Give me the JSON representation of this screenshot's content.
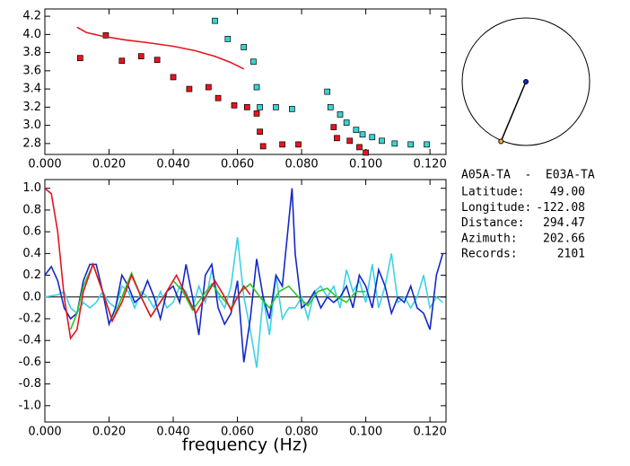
{
  "chart_data": [
    {
      "type": "scatter",
      "xlim": [
        0,
        0.125
      ],
      "ylim": [
        2.68,
        4.28
      ],
      "xticks": [
        {
          "value": 0,
          "label": "0.000"
        },
        {
          "value": 0.02,
          "label": "0.020"
        },
        {
          "value": 0.04,
          "label": "0.040"
        },
        {
          "value": 0.06,
          "label": "0.060"
        },
        {
          "value": 0.08,
          "label": "0.080"
        },
        {
          "value": 0.1,
          "label": "0.100"
        },
        {
          "value": 0.12,
          "label": "0.120"
        }
      ],
      "yticks": [
        {
          "value": 2.8,
          "label": "2.8"
        },
        {
          "value": 3.0,
          "label": "3.0"
        },
        {
          "value": 3.2,
          "label": "3.2"
        },
        {
          "value": 3.4,
          "label": "3.4"
        },
        {
          "value": 3.6,
          "label": "3.6"
        },
        {
          "value": 3.8,
          "label": "3.8"
        },
        {
          "value": 4.0,
          "label": "4.0"
        },
        {
          "value": 4.2,
          "label": "4.2"
        }
      ],
      "series": [
        {
          "type": "scatter",
          "color": "#e8141e",
          "x": [
            0.011,
            0.019,
            0.024,
            0.03,
            0.035,
            0.04,
            0.045,
            0.051,
            0.054,
            0.059,
            0.063,
            0.066,
            0.067,
            0.068,
            0.074,
            0.079,
            0.09,
            0.091,
            0.095,
            0.098,
            0.1
          ],
          "values": [
            3.74,
            3.99,
            3.71,
            3.76,
            3.72,
            3.53,
            3.4,
            3.42,
            3.3,
            3.22,
            3.2,
            3.13,
            2.93,
            2.77,
            2.79,
            2.79,
            2.98,
            2.86,
            2.83,
            2.76,
            2.7
          ]
        },
        {
          "type": "scatter",
          "color": "#3cd2d2",
          "x": [
            0.053,
            0.057,
            0.062,
            0.065,
            0.066,
            0.067,
            0.072,
            0.077,
            0.088,
            0.089,
            0.092,
            0.094,
            0.097,
            0.099,
            0.102,
            0.105,
            0.109,
            0.114,
            0.119
          ],
          "values": [
            4.15,
            3.95,
            3.86,
            3.7,
            3.42,
            3.2,
            3.2,
            3.18,
            3.37,
            3.2,
            3.12,
            3.03,
            2.95,
            2.9,
            2.87,
            2.83,
            2.8,
            2.79,
            2.79
          ]
        },
        {
          "type": "line",
          "color": "#e8141e",
          "x": [
            0.01,
            0.013,
            0.018,
            0.025,
            0.032,
            0.04,
            0.047,
            0.053,
            0.058,
            0.062
          ],
          "values": [
            4.08,
            4.02,
            3.98,
            3.94,
            3.91,
            3.87,
            3.82,
            3.76,
            3.69,
            3.62
          ]
        }
      ]
    },
    {
      "type": "line",
      "x_label": "frequency (Hz)",
      "xlim": [
        0,
        0.125
      ],
      "ylim": [
        -1.15,
        1.08
      ],
      "xticks": [
        {
          "value": 0,
          "label": "0.000"
        },
        {
          "value": 0.02,
          "label": "0.020"
        },
        {
          "value": 0.04,
          "label": "0.040"
        },
        {
          "value": 0.06,
          "label": "0.060"
        },
        {
          "value": 0.08,
          "label": "0.080"
        },
        {
          "value": 0.1,
          "label": "0.100"
        },
        {
          "value": 0.12,
          "label": "0.120"
        }
      ],
      "yticks": [
        {
          "value": -1.0,
          "label": "-1.0"
        },
        {
          "value": -0.8,
          "label": "-0.8"
        },
        {
          "value": -0.6,
          "label": "-0.6"
        },
        {
          "value": -0.4,
          "label": "-0.4"
        },
        {
          "value": -0.2,
          "label": "-0.2"
        },
        {
          "value": 0,
          "label": "0.0"
        },
        {
          "value": 0.2,
          "label": "0.2"
        },
        {
          "value": 0.4,
          "label": "0.4"
        },
        {
          "value": 0.6,
          "label": "0.6"
        },
        {
          "value": 0.8,
          "label": "0.8"
        },
        {
          "value": 1.0,
          "label": "1.0"
        }
      ],
      "series": [
        {
          "type": "line",
          "color": "#3cd2e6",
          "x": [
            0,
            0.004,
            0.006,
            0.008,
            0.01,
            0.012,
            0.014,
            0.016,
            0.018,
            0.02,
            0.022,
            0.024,
            0.026,
            0.028,
            0.03,
            0.032,
            0.034,
            0.036,
            0.038,
            0.04,
            0.042,
            0.044,
            0.046,
            0.048,
            0.05,
            0.052,
            0.054,
            0.056,
            0.058,
            0.06,
            0.062,
            0.064,
            0.066,
            0.068,
            0.07,
            0.072,
            0.074,
            0.076,
            0.078,
            0.08,
            0.082,
            0.084,
            0.086,
            0.088,
            0.09,
            0.092,
            0.094,
            0.096,
            0.098,
            0.1,
            0.102,
            0.104,
            0.106,
            0.108,
            0.11,
            0.112,
            0.114,
            0.116,
            0.118,
            0.12,
            0.122,
            0.124
          ],
          "values": [
            0.0,
            0.02,
            0.05,
            -0.1,
            -0.15,
            -0.05,
            -0.1,
            -0.05,
            0.05,
            -0.05,
            -0.1,
            0.1,
            0.05,
            -0.1,
            0.05,
            0.0,
            -0.1,
            0.05,
            -0.1,
            -0.05,
            0.1,
            0.05,
            -0.1,
            0.1,
            -0.05,
            0.25,
            0.0,
            -0.1,
            0.1,
            0.55,
            0.0,
            -0.3,
            -0.65,
            0.0,
            -0.35,
            0.2,
            -0.2,
            -0.1,
            -0.1,
            0.0,
            -0.2,
            0.05,
            0.1,
            0.0,
            0.1,
            -0.1,
            0.25,
            0.05,
            0.15,
            -0.05,
            0.3,
            -0.1,
            0.1,
            0.4,
            -0.05,
            0.0,
            -0.1,
            0.0,
            0.2,
            -0.1,
            0.0,
            -0.05
          ]
        },
        {
          "type": "line",
          "color": "#1428c8",
          "x": [
            0,
            0.002,
            0.004,
            0.006,
            0.008,
            0.01,
            0.012,
            0.014,
            0.016,
            0.018,
            0.02,
            0.022,
            0.024,
            0.026,
            0.028,
            0.03,
            0.032,
            0.034,
            0.036,
            0.038,
            0.04,
            0.042,
            0.044,
            0.046,
            0.048,
            0.05,
            0.052,
            0.054,
            0.056,
            0.058,
            0.06,
            0.062,
            0.064,
            0.066,
            0.068,
            0.07,
            0.072,
            0.074,
            0.076,
            0.077,
            0.078,
            0.08,
            0.082,
            0.084,
            0.086,
            0.088,
            0.09,
            0.092,
            0.094,
            0.096,
            0.098,
            0.1,
            0.102,
            0.104,
            0.106,
            0.108,
            0.11,
            0.112,
            0.114,
            0.116,
            0.118,
            0.12,
            0.122,
            0.124
          ],
          "values": [
            0.2,
            0.28,
            0.15,
            -0.1,
            -0.2,
            -0.15,
            0.15,
            0.3,
            0.3,
            0.05,
            -0.25,
            -0.1,
            0.2,
            0.1,
            -0.05,
            0.0,
            0.15,
            0.0,
            -0.2,
            0.05,
            0.1,
            -0.05,
            0.3,
            0.0,
            -0.35,
            0.2,
            0.3,
            -0.1,
            -0.25,
            -0.15,
            0.15,
            -0.6,
            -0.2,
            0.35,
            0.0,
            -0.2,
            0.2,
            0.1,
            0.7,
            1.0,
            0.4,
            -0.1,
            -0.05,
            0.05,
            -0.1,
            0.0,
            -0.05,
            0.0,
            0.1,
            -0.1,
            0.2,
            0.1,
            -0.1,
            0.25,
            0.1,
            -0.15,
            0.0,
            -0.05,
            0.1,
            -0.1,
            -0.15,
            -0.3,
            0.2,
            0.4
          ]
        },
        {
          "type": "line",
          "color": "#28c828",
          "x": [
            0.008,
            0.01,
            0.012,
            0.015,
            0.018,
            0.021,
            0.024,
            0.027,
            0.03,
            0.033,
            0.036,
            0.04,
            0.043,
            0.046,
            0.049,
            0.052,
            0.055,
            0.058,
            0.061,
            0.064,
            0.067,
            0.07,
            0.073,
            0.076,
            0.079,
            0.082,
            0.085,
            0.088,
            0.091,
            0.094,
            0.097,
            0.1
          ],
          "values": [
            -0.3,
            -0.15,
            0.1,
            0.3,
            0.05,
            -0.22,
            0.0,
            0.22,
            0.0,
            -0.18,
            -0.05,
            0.15,
            0.05,
            -0.12,
            0.0,
            0.12,
            0.0,
            -0.1,
            0.05,
            0.12,
            0.0,
            -0.1,
            0.05,
            0.1,
            0.0,
            -0.08,
            0.05,
            0.08,
            0.0,
            -0.05,
            0.05,
            0.05
          ]
        },
        {
          "type": "line",
          "color": "#e8141e",
          "x": [
            0,
            0.002,
            0.004,
            0.006,
            0.008,
            0.01,
            0.012,
            0.015,
            0.018,
            0.021,
            0.024,
            0.027,
            0.03,
            0.033,
            0.037,
            0.041,
            0.044,
            0.047,
            0.05,
            0.053,
            0.056,
            0.058,
            0.06,
            0.062,
            0.064
          ],
          "values": [
            1.0,
            0.95,
            0.6,
            0.0,
            -0.38,
            -0.3,
            0.05,
            0.3,
            0.05,
            -0.22,
            -0.05,
            0.2,
            0.0,
            -0.18,
            0.0,
            0.2,
            0.02,
            -0.15,
            0.0,
            0.15,
            0.0,
            -0.12,
            0.0,
            0.1,
            0.02
          ]
        }
      ]
    }
  ],
  "info": {
    "header": "A05A-TA  -  E03A-TA",
    "rows": [
      {
        "label": "Latitude:",
        "value": "49.00"
      },
      {
        "label": "Longitude:",
        "value": "-122.08"
      },
      {
        "label": "Distance:",
        "value": "294.47"
      },
      {
        "label": "Azimuth:",
        "value": "202.66"
      },
      {
        "label": "Records:",
        "value": "2101"
      }
    ]
  }
}
